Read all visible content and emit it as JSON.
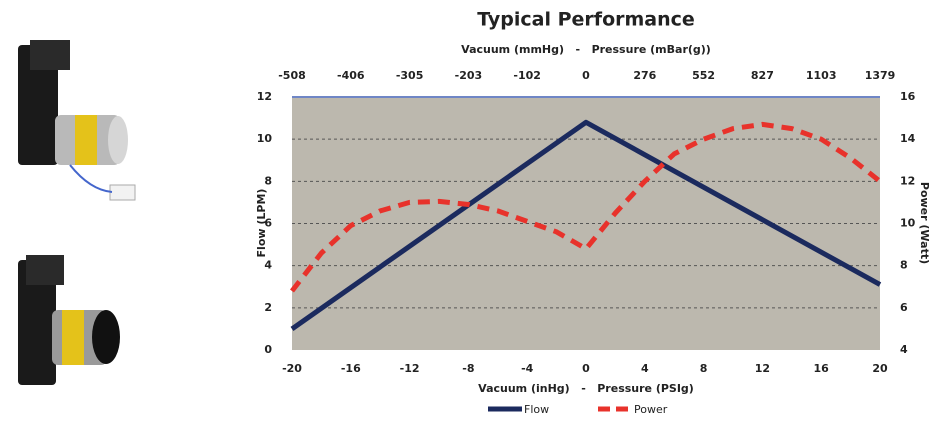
{
  "chart_data": {
    "type": "line",
    "title": "Typical Performance",
    "x2label": "Vacuum (mmHg)   -   Pressure (mBar(g))",
    "x2ticks": [
      -508,
      -406,
      -305,
      -203,
      -102,
      0,
      276,
      552,
      827,
      1103,
      1379
    ],
    "xlabel": "Vacuum (inHg)   -   Pressure (PSIg)",
    "ylabel": "Flow (LPM)",
    "y2label": "Power (Watt)",
    "xlim": [
      -20,
      20
    ],
    "xticks": [
      -20,
      -16,
      -12,
      -8,
      -4,
      0,
      4,
      8,
      12,
      16,
      20
    ],
    "ylim": [
      0,
      12
    ],
    "yticks": [
      0,
      2,
      4,
      6,
      8,
      10,
      12
    ],
    "y2lim": [
      4,
      16
    ],
    "y2ticks": [
      4,
      6,
      8,
      10,
      12,
      14,
      16
    ],
    "grid": true,
    "legend": "bottom",
    "series": [
      {
        "name": "Flow",
        "color": "#1b2a5e",
        "style": "solid",
        "x": [
          -20,
          0,
          20
        ],
        "values": [
          1,
          10.8,
          3.1
        ]
      },
      {
        "name": "Power",
        "color": "#e8322b",
        "style": "dashed",
        "axis": "y2",
        "x": [
          -20,
          -18,
          -16,
          -14,
          -12,
          -10,
          -8,
          -6,
          -4,
          -2,
          0,
          2,
          4,
          6,
          8,
          10,
          12,
          14,
          16,
          18,
          20
        ],
        "values": [
          6.8,
          8.6,
          9.9,
          10.6,
          11.0,
          11.05,
          10.9,
          10.6,
          10.1,
          9.6,
          8.8,
          10.5,
          12.0,
          13.3,
          14.0,
          14.5,
          14.7,
          14.5,
          14.0,
          13.1,
          12.0
        ]
      }
    ]
  }
}
